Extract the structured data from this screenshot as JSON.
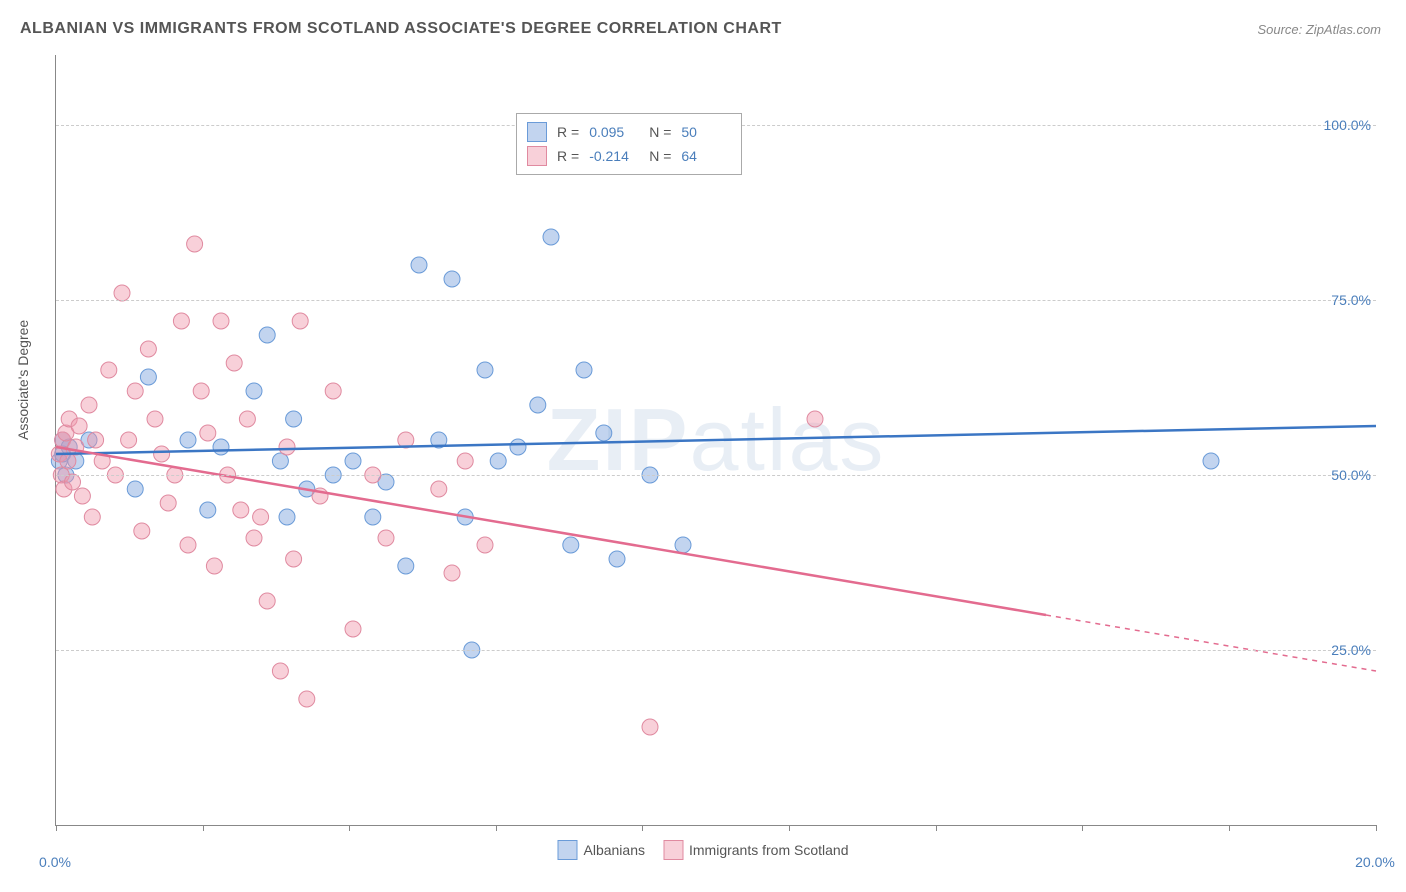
{
  "title": "ALBANIAN VS IMMIGRANTS FROM SCOTLAND ASSOCIATE'S DEGREE CORRELATION CHART",
  "source": "Source: ZipAtlas.com",
  "watermark": "ZIPatlas",
  "ylabel": "Associate's Degree",
  "chart": {
    "type": "scatter",
    "background_color": "#ffffff",
    "grid_color": "#cccccc",
    "axis_color": "#888888",
    "tick_label_color": "#4a7ebb",
    "xlim": [
      0,
      20
    ],
    "ylim": [
      0,
      110
    ],
    "x_ticks": [
      0,
      2.22,
      4.44,
      6.66,
      8.88,
      11.11,
      13.33,
      15.55,
      17.77,
      20
    ],
    "x_tick_labels": {
      "0": "0.0%",
      "20": "20.0%"
    },
    "y_gridlines": [
      25,
      50,
      75,
      100
    ],
    "y_tick_labels": {
      "25": "25.0%",
      "50": "50.0%",
      "75": "75.0%",
      "100": "100.0%"
    },
    "marker_radius": 8,
    "marker_stroke_width": 1,
    "line_width": 2.5,
    "series": [
      {
        "name": "Albanians",
        "color_fill": "rgba(120,160,220,0.45)",
        "color_stroke": "#6a9bd8",
        "line_color": "#3b76c4",
        "R": "0.095",
        "N": "50",
        "regression": {
          "x1": 0,
          "y1": 53,
          "x2": 20,
          "y2": 57,
          "solid_until_x": 20
        },
        "points": [
          [
            0.05,
            52
          ],
          [
            0.1,
            53
          ],
          [
            0.1,
            55
          ],
          [
            0.15,
            50
          ],
          [
            0.2,
            54
          ],
          [
            0.3,
            52
          ],
          [
            0.5,
            55
          ],
          [
            1.2,
            48
          ],
          [
            1.4,
            64
          ],
          [
            2.0,
            55
          ],
          [
            2.3,
            45
          ],
          [
            2.5,
            54
          ],
          [
            3.0,
            62
          ],
          [
            3.2,
            70
          ],
          [
            3.4,
            52
          ],
          [
            3.5,
            44
          ],
          [
            3.6,
            58
          ],
          [
            3.8,
            48
          ],
          [
            4.2,
            50
          ],
          [
            4.5,
            52
          ],
          [
            4.8,
            44
          ],
          [
            5.0,
            49
          ],
          [
            5.3,
            37
          ],
          [
            5.5,
            80
          ],
          [
            5.8,
            55
          ],
          [
            6.0,
            78
          ],
          [
            6.2,
            44
          ],
          [
            6.3,
            25
          ],
          [
            6.5,
            65
          ],
          [
            6.7,
            52
          ],
          [
            7.0,
            54
          ],
          [
            7.3,
            60
          ],
          [
            7.5,
            84
          ],
          [
            7.8,
            40
          ],
          [
            8.0,
            65
          ],
          [
            8.3,
            56
          ],
          [
            8.5,
            38
          ],
          [
            9.0,
            50
          ],
          [
            9.5,
            40
          ],
          [
            17.5,
            52
          ]
        ]
      },
      {
        "name": "Immigrants from Scotland",
        "color_fill": "rgba(240,150,170,0.45)",
        "color_stroke": "#e08aa0",
        "line_color": "#e36b8f",
        "R": "-0.214",
        "N": "64",
        "regression": {
          "x1": 0,
          "y1": 54,
          "x2": 20,
          "y2": 22,
          "solid_until_x": 15
        },
        "points": [
          [
            0.05,
            53
          ],
          [
            0.08,
            50
          ],
          [
            0.1,
            55
          ],
          [
            0.12,
            48
          ],
          [
            0.15,
            56
          ],
          [
            0.18,
            52
          ],
          [
            0.2,
            58
          ],
          [
            0.25,
            49
          ],
          [
            0.3,
            54
          ],
          [
            0.35,
            57
          ],
          [
            0.4,
            47
          ],
          [
            0.5,
            60
          ],
          [
            0.55,
            44
          ],
          [
            0.6,
            55
          ],
          [
            0.7,
            52
          ],
          [
            0.8,
            65
          ],
          [
            0.9,
            50
          ],
          [
            1.0,
            76
          ],
          [
            1.1,
            55
          ],
          [
            1.2,
            62
          ],
          [
            1.3,
            42
          ],
          [
            1.4,
            68
          ],
          [
            1.5,
            58
          ],
          [
            1.6,
            53
          ],
          [
            1.7,
            46
          ],
          [
            1.8,
            50
          ],
          [
            1.9,
            72
          ],
          [
            2.0,
            40
          ],
          [
            2.1,
            83
          ],
          [
            2.2,
            62
          ],
          [
            2.3,
            56
          ],
          [
            2.4,
            37
          ],
          [
            2.5,
            72
          ],
          [
            2.6,
            50
          ],
          [
            2.7,
            66
          ],
          [
            2.8,
            45
          ],
          [
            2.9,
            58
          ],
          [
            3.0,
            41
          ],
          [
            3.1,
            44
          ],
          [
            3.2,
            32
          ],
          [
            3.4,
            22
          ],
          [
            3.5,
            54
          ],
          [
            3.6,
            38
          ],
          [
            3.7,
            72
          ],
          [
            3.8,
            18
          ],
          [
            4.0,
            47
          ],
          [
            4.2,
            62
          ],
          [
            4.5,
            28
          ],
          [
            4.8,
            50
          ],
          [
            5.0,
            41
          ],
          [
            5.3,
            55
          ],
          [
            5.8,
            48
          ],
          [
            6.0,
            36
          ],
          [
            6.2,
            52
          ],
          [
            6.5,
            40
          ],
          [
            9.0,
            14
          ],
          [
            11.5,
            58
          ]
        ]
      }
    ]
  },
  "legend_top": {
    "r_label": "R =",
    "n_label": "N ="
  },
  "legend_bottom": {
    "items": [
      "Albanians",
      "Immigrants from Scotland"
    ]
  }
}
